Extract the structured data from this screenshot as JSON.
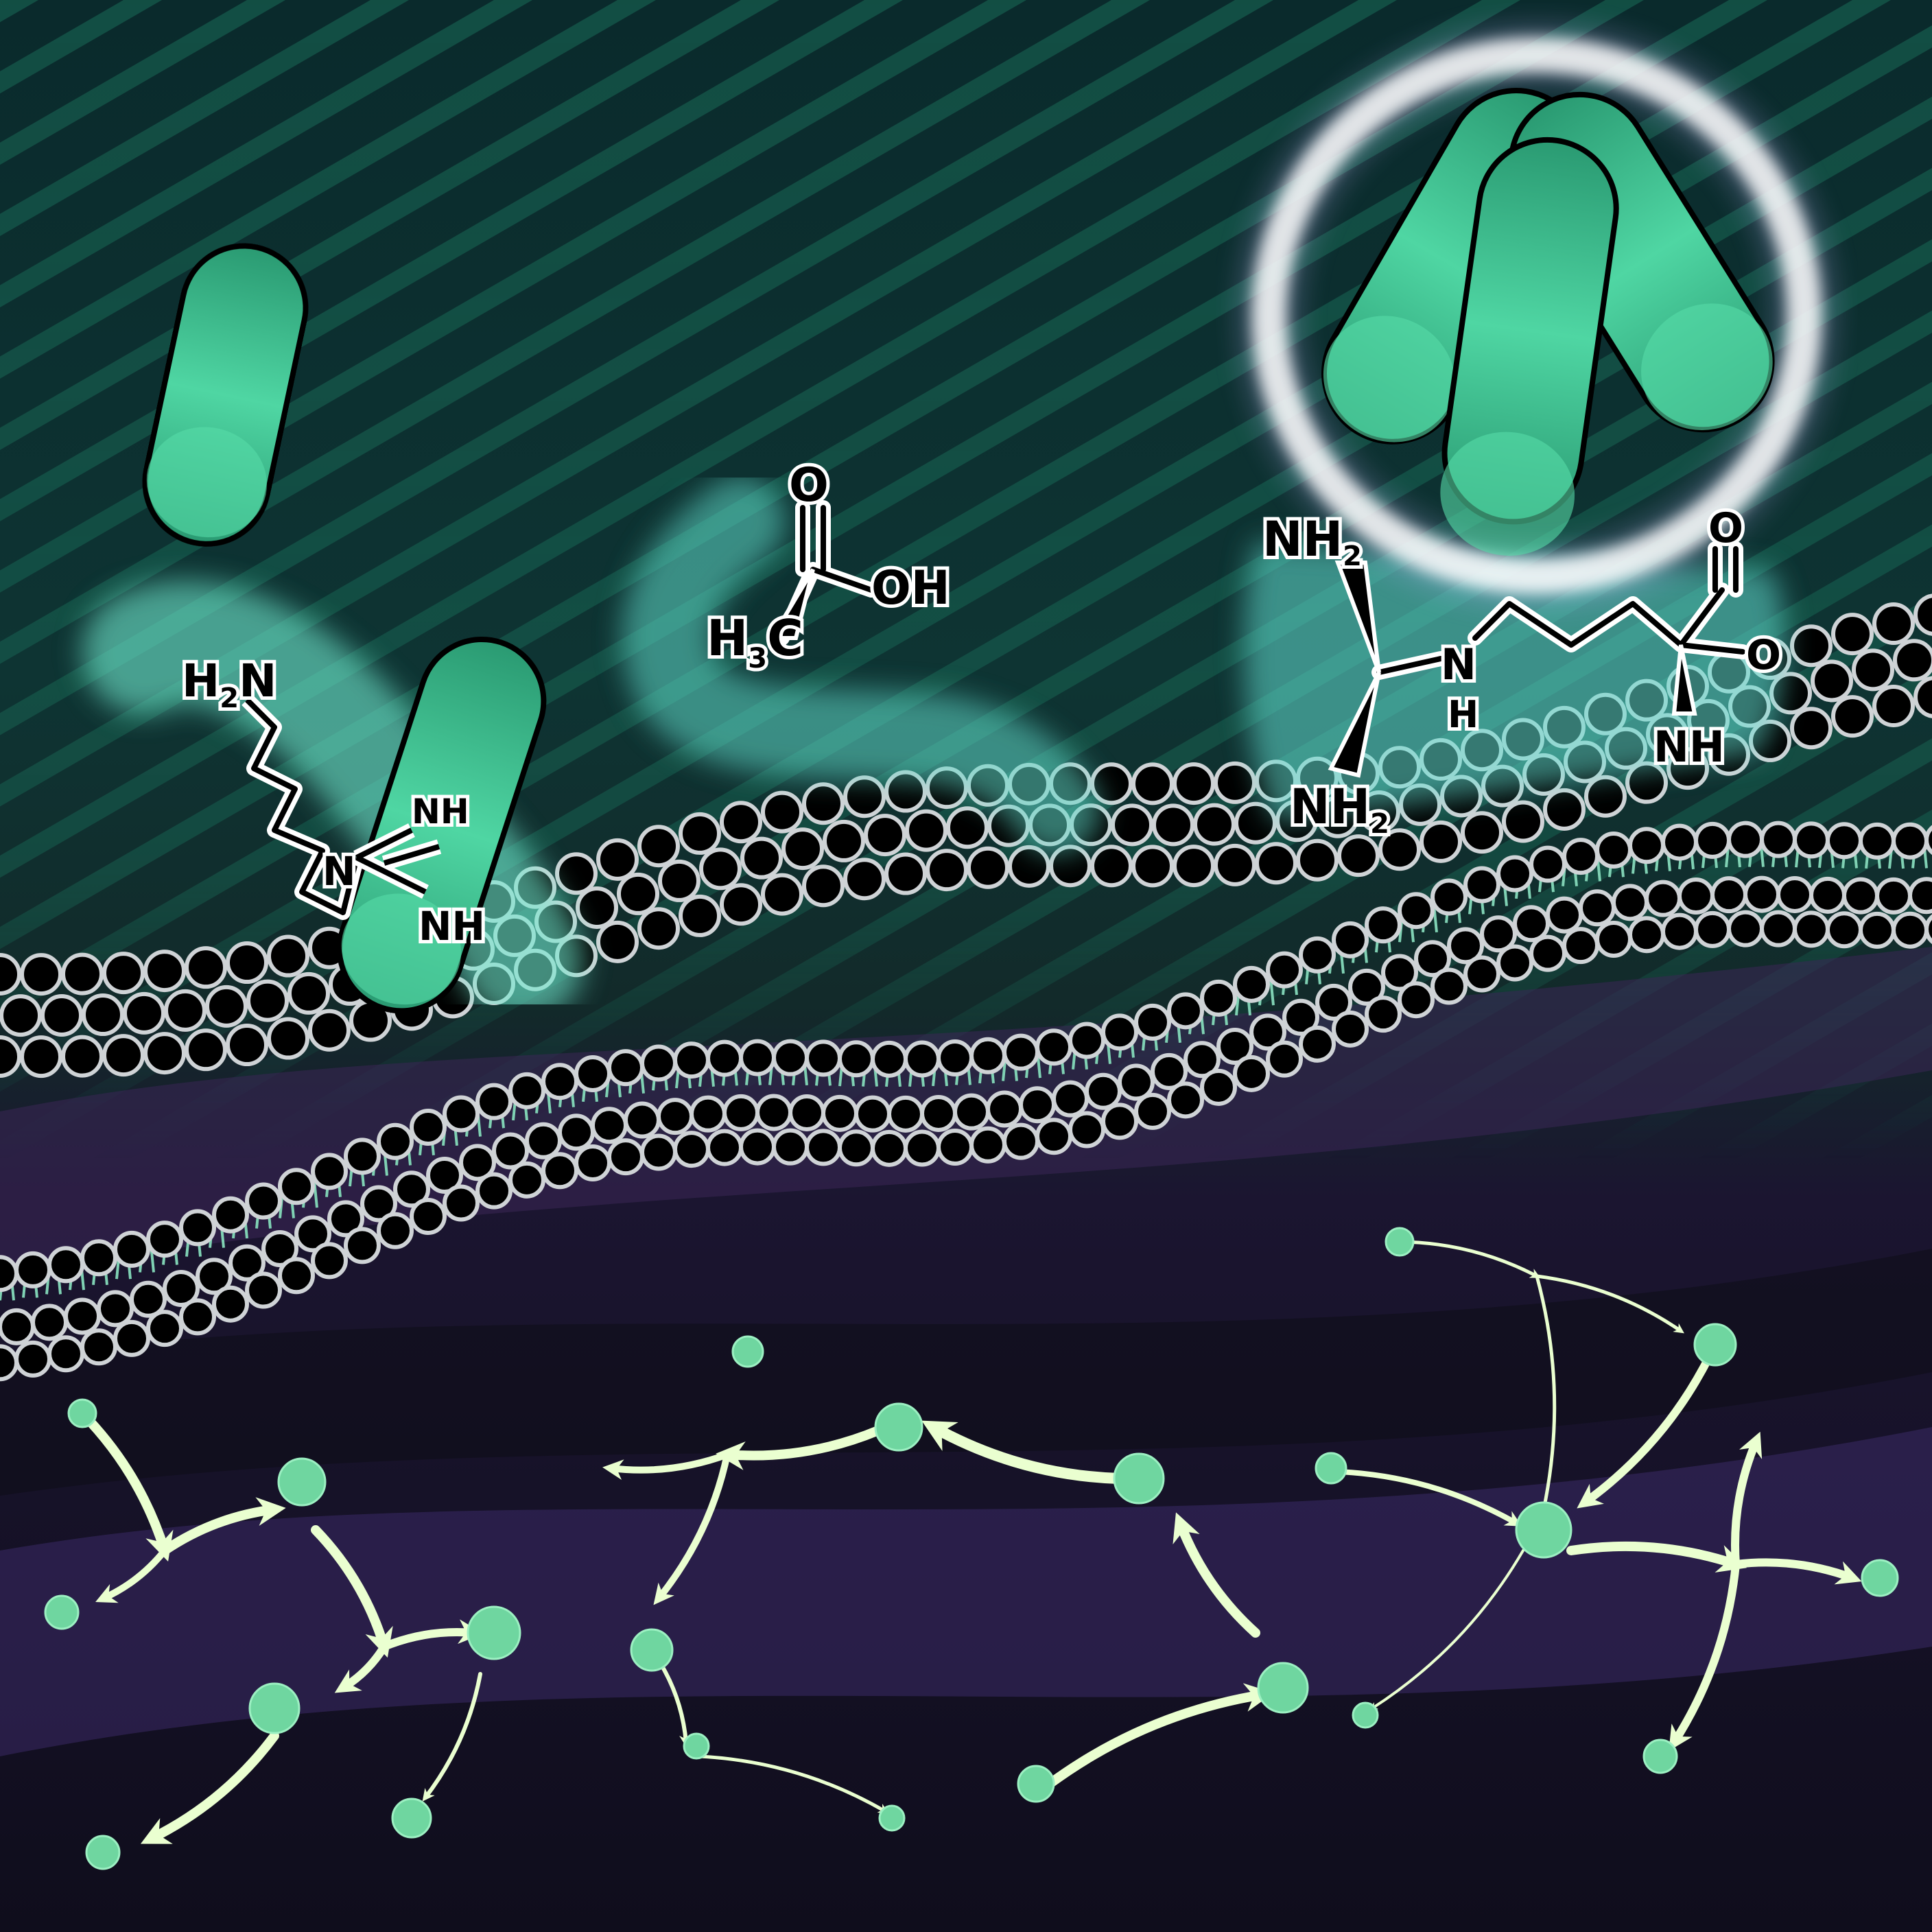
{
  "scene": {
    "colors": {
      "background_top": "#0b2a2c",
      "background_stripe": "#14604f",
      "background_bottom": "#120f22",
      "band_purple": "#3a2656",
      "bacteria": "#3fc796",
      "bacteria_dark": "#1f7e5e",
      "glow": "#9ef7e0",
      "halo": "#f2efff",
      "lipid_head": "#000000",
      "lipid_outline": "#cfd3d6",
      "lipid_tail": "#7fd1b3",
      "network_node": "#6fd6a0",
      "network_arrow": "#eaffd0"
    }
  },
  "molecules": {
    "agmatine": {
      "h2n": {
        "main": "H",
        "sub": "2",
        "tail": "N"
      },
      "nh_top": "NH",
      "n_mid": "N",
      "nh_bottom": "NH"
    },
    "acetic_acid": {
      "o": "O",
      "oh": "OH",
      "h3c": {
        "main": "H",
        "sub": "3",
        "tail": "C"
      }
    },
    "arginine_like": {
      "nh2_top": {
        "main": "NH",
        "sub": "2"
      },
      "n_center": "N",
      "h_center": "H",
      "nh2_bottom": {
        "main": "NH",
        "sub": "2"
      },
      "o_top": "O",
      "o_right": "O",
      "nh_right": {
        "main": "NH"
      }
    }
  }
}
